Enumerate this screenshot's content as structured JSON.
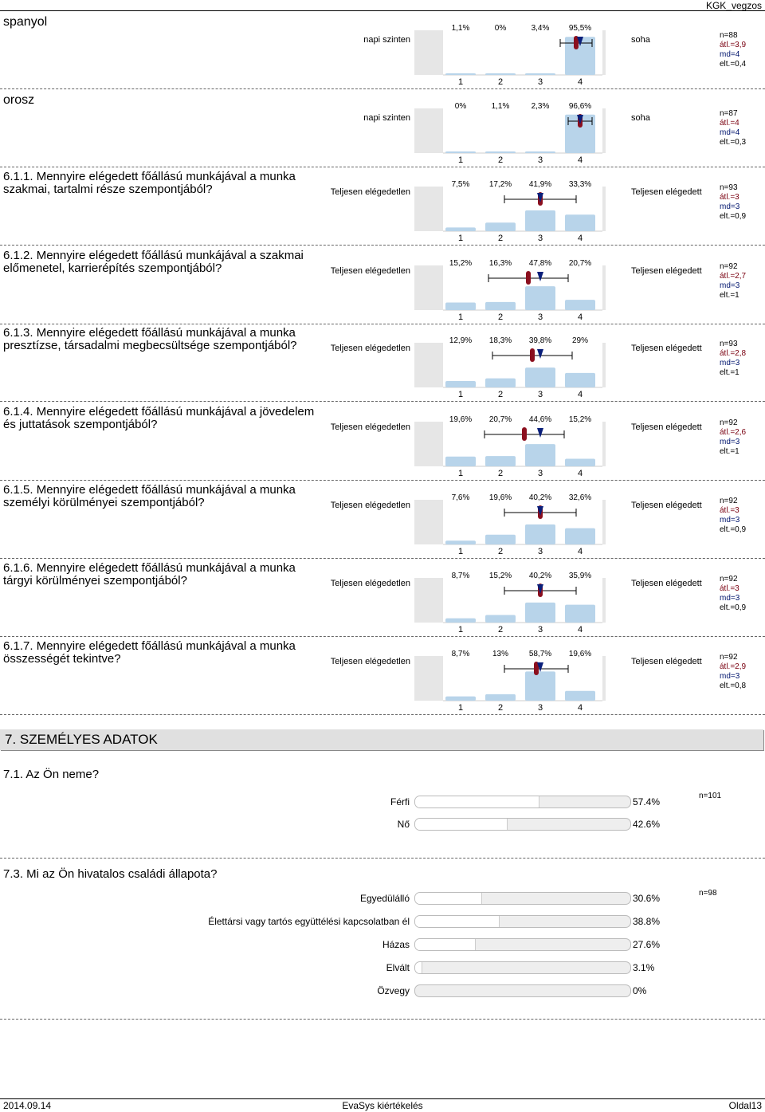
{
  "header": {
    "title": "KGK_vegzos"
  },
  "footer": {
    "date": "2014.09.14",
    "center": "EvaSys kiértékelés",
    "page": "Oldal13"
  },
  "scale_ticks": [
    "1",
    "2",
    "3",
    "4"
  ],
  "lang_blocks": [
    {
      "title": "spanyol",
      "left": "napi szinten",
      "right": "soha",
      "pct": [
        "1,1%",
        "0%",
        "3,4%",
        "95,5%"
      ],
      "values": [
        1.1,
        0,
        3.4,
        95.5
      ],
      "n": "n=88",
      "avg": "átl.=3,9",
      "md": "md=4",
      "dev": "elt.=0,4",
      "avg_val": 3.9,
      "md_val": 4,
      "dev_val": 0.4
    },
    {
      "title": "orosz",
      "left": "napi szinten",
      "right": "soha",
      "pct": [
        "0%",
        "1,1%",
        "2,3%",
        "96,6%"
      ],
      "values": [
        0,
        1.1,
        2.3,
        96.6
      ],
      "n": "n=87",
      "avg": "átl.=4",
      "md": "md=4",
      "dev": "elt.=0,3",
      "avg_val": 4,
      "md_val": 4,
      "dev_val": 0.3
    }
  ],
  "sat_blocks": [
    {
      "title": "6.1.1. Mennyire elégedett főállású munkájával a munka szakmai, tartalmi része szempontjából?",
      "left": "Teljesen elégedetlen",
      "right": "Teljesen elégedett",
      "pct": [
        "7,5%",
        "17,2%",
        "41,9%",
        "33,3%"
      ],
      "values": [
        7.5,
        17.2,
        41.9,
        33.3
      ],
      "n": "n=93",
      "avg": "átl.=3",
      "md": "md=3",
      "dev": "elt.=0,9",
      "avg_val": 3.0,
      "md_val": 3,
      "dev_val": 0.9
    },
    {
      "title": "6.1.2. Mennyire elégedett főállású munkájával a szakmai előmenetel, karrierépítés szempontjából?",
      "left": "Teljesen elégedetlen",
      "right": "Teljesen elégedett",
      "pct": [
        "15,2%",
        "16,3%",
        "47,8%",
        "20,7%"
      ],
      "values": [
        15.2,
        16.3,
        47.8,
        20.7
      ],
      "n": "n=92",
      "avg": "átl.=2,7",
      "md": "md=3",
      "dev": "elt.=1",
      "avg_val": 2.7,
      "md_val": 3,
      "dev_val": 1
    },
    {
      "title": "6.1.3. Mennyire elégedett főállású munkájával a munka presztízse, társadalmi megbecsültsége szempontjából?",
      "left": "Teljesen elégedetlen",
      "right": "Teljesen elégedett",
      "pct": [
        "12,9%",
        "18,3%",
        "39,8%",
        "29%"
      ],
      "values": [
        12.9,
        18.3,
        39.8,
        29
      ],
      "n": "n=93",
      "avg": "átl.=2,8",
      "md": "md=3",
      "dev": "elt.=1",
      "avg_val": 2.8,
      "md_val": 3,
      "dev_val": 1
    },
    {
      "title": "6.1.4. Mennyire elégedett főállású munkájával a jövedelem és juttatások szempontjából?",
      "left": "Teljesen elégedetlen",
      "right": "Teljesen elégedett",
      "pct": [
        "19,6%",
        "20,7%",
        "44,6%",
        "15,2%"
      ],
      "values": [
        19.6,
        20.7,
        44.6,
        15.2
      ],
      "n": "n=92",
      "avg": "átl.=2,6",
      "md": "md=3",
      "dev": "elt.=1",
      "avg_val": 2.6,
      "md_val": 3,
      "dev_val": 1
    },
    {
      "title": "6.1.5. Mennyire elégedett főállású munkájával a munka személyi körülményei szempontjából?",
      "left": "Teljesen elégedetlen",
      "right": "Teljesen elégedett",
      "pct": [
        "7,6%",
        "19,6%",
        "40,2%",
        "32,6%"
      ],
      "values": [
        7.6,
        19.6,
        40.2,
        32.6
      ],
      "n": "n=92",
      "avg": "átl.=3",
      "md": "md=3",
      "dev": "elt.=0,9",
      "avg_val": 3.0,
      "md_val": 3,
      "dev_val": 0.9
    },
    {
      "title": "6.1.6. Mennyire elégedett főállású munkájával a munka tárgyi körülményei szempontjából?",
      "left": "Teljesen elégedetlen",
      "right": "Teljesen elégedett",
      "pct": [
        "8,7%",
        "15,2%",
        "40,2%",
        "35,9%"
      ],
      "values": [
        8.7,
        15.2,
        40.2,
        35.9
      ],
      "n": "n=92",
      "avg": "átl.=3",
      "md": "md=3",
      "dev": "elt.=0,9",
      "avg_val": 3.0,
      "md_val": 3,
      "dev_val": 0.9
    },
    {
      "title": "6.1.7. Mennyire elégedett főállású munkájával a munka összességét tekintve?",
      "left": "Teljesen elégedetlen",
      "right": "Teljesen elégedett",
      "pct": [
        "8,7%",
        "13%",
        "58,7%",
        "19,6%"
      ],
      "values": [
        8.7,
        13,
        58.7,
        19.6
      ],
      "n": "n=92",
      "avg": "átl.=2,9",
      "md": "md=3",
      "dev": "elt.=0,8",
      "avg_val": 2.9,
      "md_val": 3,
      "dev_val": 0.8
    }
  ],
  "section": {
    "title": "7. SZEMÉLYES ADATOK"
  },
  "gender": {
    "title": "7.1. Az Ön neme?",
    "n": "n=101",
    "options": [
      {
        "label": "Férfi",
        "pct": "57.4%",
        "value": 57.4
      },
      {
        "label": "Nő",
        "pct": "42.6%",
        "value": 42.6
      }
    ]
  },
  "marital": {
    "title": "7.3. Mi az Ön hivatalos családi állapota?",
    "n": "n=98",
    "options": [
      {
        "label": "Egyedülálló",
        "pct": "30.6%",
        "value": 30.6
      },
      {
        "label": "Élettársi vagy tartós együttélési kapcsolatban él",
        "pct": "38.8%",
        "value": 38.8
      },
      {
        "label": "Házas",
        "pct": "27.6%",
        "value": 27.6
      },
      {
        "label": "Elvált",
        "pct": "3.1%",
        "value": 3.1
      },
      {
        "label": "Özvegy",
        "pct": "0%",
        "value": 0
      }
    ]
  },
  "colors": {
    "bar": "#b8d4ea",
    "avg": "#8b0f1e",
    "md": "#0a1f7a",
    "panel": "#e6e6e6"
  }
}
